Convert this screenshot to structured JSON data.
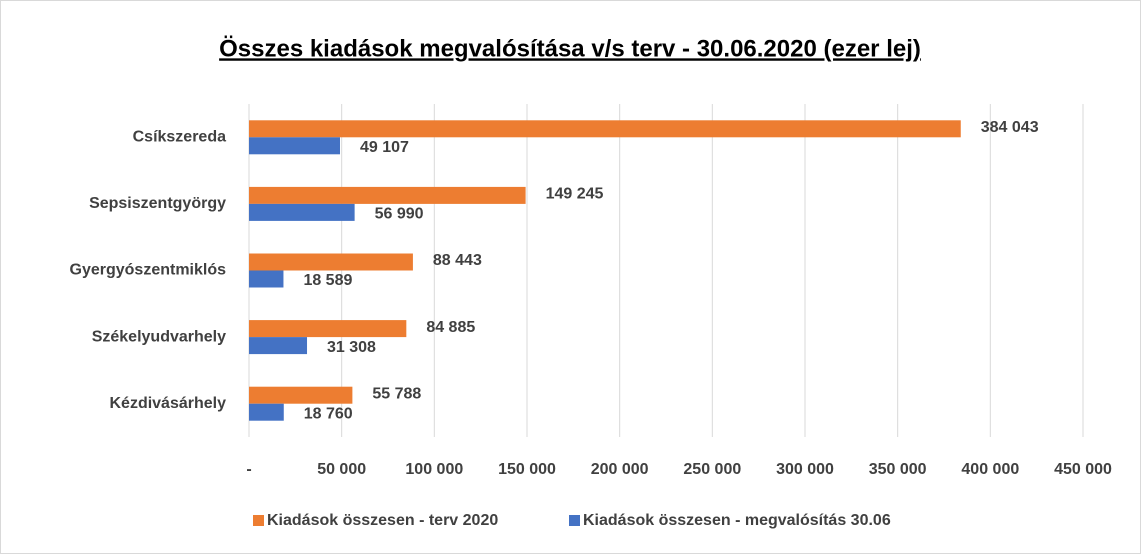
{
  "chart_data": {
    "type": "barh",
    "title": "Összes kiadások megvalósítása v/s terv - 30.06.2020 (ezer lej)",
    "categories": [
      "Csíkszereda",
      "Sepsiszentgyörgy",
      "Gyergyószentmiklós",
      "Székelyudvarhely",
      "Kézdivásárhely"
    ],
    "series": [
      {
        "name": "Kiadások összesen - terv 2020",
        "color": "#ed7d31",
        "values": [
          384043,
          149245,
          88443,
          84885,
          55788
        ],
        "value_labels": [
          "384 043",
          "149 245",
          "88 443",
          "84 885",
          "55 788"
        ]
      },
      {
        "name": "Kiadások összesen - megvalósítás 30.06",
        "color": "#4472c4",
        "values": [
          49107,
          56990,
          18589,
          31308,
          18760
        ],
        "value_labels": [
          "49 107",
          "56 990",
          "18 589",
          "31 308",
          "18 760"
        ]
      }
    ],
    "xlim": [
      0,
      450000
    ],
    "xticks": [
      {
        "value": 0,
        "label": "-"
      },
      {
        "value": 50000,
        "label": "50 000"
      },
      {
        "value": 100000,
        "label": "100 000"
      },
      {
        "value": 150000,
        "label": "150 000"
      },
      {
        "value": 200000,
        "label": "200 000"
      },
      {
        "value": 250000,
        "label": "250 000"
      },
      {
        "value": 300000,
        "label": "300 000"
      },
      {
        "value": 350000,
        "label": "350 000"
      },
      {
        "value": 400000,
        "label": "400 000"
      },
      {
        "value": 450000,
        "label": "450 000"
      }
    ],
    "grid": true,
    "legend": "bottom"
  }
}
